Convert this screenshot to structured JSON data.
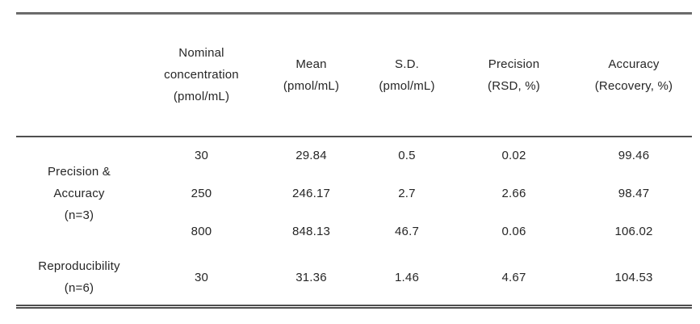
{
  "table": {
    "columns": [
      {
        "lines": []
      },
      {
        "lines": [
          "Nominal",
          "concentration",
          "(pmol/mL)"
        ]
      },
      {
        "lines": [
          "Mean",
          "(pmol/mL)"
        ]
      },
      {
        "lines": [
          "S.D.",
          "(pmol/mL)"
        ]
      },
      {
        "lines": [
          "Precision",
          "(RSD, %)"
        ]
      },
      {
        "lines": [
          "Accuracy",
          "(Recovery, %)"
        ]
      }
    ],
    "groups": [
      {
        "label_lines": [
          "Precision &",
          "Accuracy",
          "(n=3)"
        ],
        "rows": [
          [
            "30",
            "29.84",
            "0.5",
            "0.02",
            "99.46"
          ],
          [
            "250",
            "246.17",
            "2.7",
            "2.66",
            "98.47"
          ],
          [
            "800",
            "848.13",
            "46.7",
            "0.06",
            "106.02"
          ]
        ]
      },
      {
        "label_lines": [
          "Reproducibility",
          "(n=6)"
        ],
        "rows": [
          [
            "30",
            "31.36",
            "1.46",
            "4.67",
            "104.53"
          ]
        ]
      }
    ]
  },
  "chart_data": {
    "type": "table",
    "columns": [
      "",
      "Nominal concentration (pmol/mL)",
      "Mean (pmol/mL)",
      "S.D. (pmol/mL)",
      "Precision (RSD, %)",
      "Accuracy (Recovery, %)"
    ],
    "rows": [
      [
        "Precision & Accuracy (n=3)",
        30,
        29.84,
        0.5,
        0.02,
        99.46
      ],
      [
        "Precision & Accuracy (n=3)",
        250,
        246.17,
        2.7,
        2.66,
        98.47
      ],
      [
        "Precision & Accuracy (n=3)",
        800,
        848.13,
        46.7,
        0.06,
        106.02
      ],
      [
        "Reproducibility (n=6)",
        30,
        31.36,
        1.46,
        4.67,
        104.53
      ]
    ]
  },
  "style": {
    "rule_color_top": "#6b6b6b",
    "rule_color_mid": "#4f4f4f",
    "rule_color_bottom": "#4f4f4f",
    "text_color": "#262626",
    "background": "#ffffff"
  }
}
